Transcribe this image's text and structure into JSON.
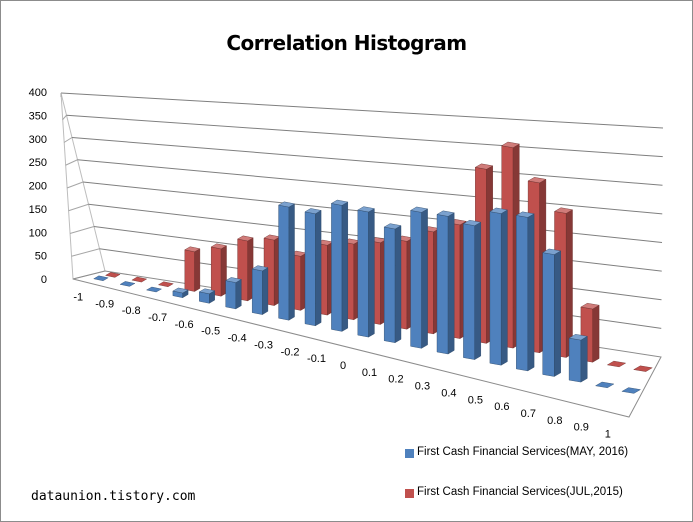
{
  "chart_data": {
    "type": "bar",
    "title": "Correlation Histogram",
    "categories": [
      "-1",
      "-0.9",
      "-0.8",
      "-0.7",
      "-0.6",
      "-0.5",
      "-0.4",
      "-0.3",
      "-0.2",
      "-0.1",
      "0",
      "0.1",
      "0.2",
      "0.3",
      "0.4",
      "0.5",
      "0.6",
      "0.7",
      "0.8",
      "0.9",
      "1"
    ],
    "y_ticks": [
      "400",
      "350",
      "300",
      "250",
      "200",
      "150",
      "100",
      "50",
      "0"
    ],
    "ylim": [
      0,
      400
    ],
    "grid": true,
    "legend_position": "bottom-right",
    "series": [
      {
        "name": "First Cash Financial Services(MAY, 2016)",
        "color": "#4f81bd",
        "values": [
          0,
          0,
          0,
          10,
          20,
          55,
          90,
          230,
          225,
          250,
          245,
          220,
          260,
          260,
          250,
          280,
          280,
          220,
          75,
          0,
          0
        ]
      },
      {
        "name": "First Cash Financial Services(JUL,2015)",
        "color": "#c0504d",
        "values": [
          0,
          0,
          0,
          85,
          100,
          125,
          135,
          110,
          140,
          150,
          160,
          170,
          195,
          215,
          325,
          370,
          310,
          260,
          95,
          0,
          0
        ]
      }
    ]
  },
  "watermark": "dataunion.tistory.com"
}
